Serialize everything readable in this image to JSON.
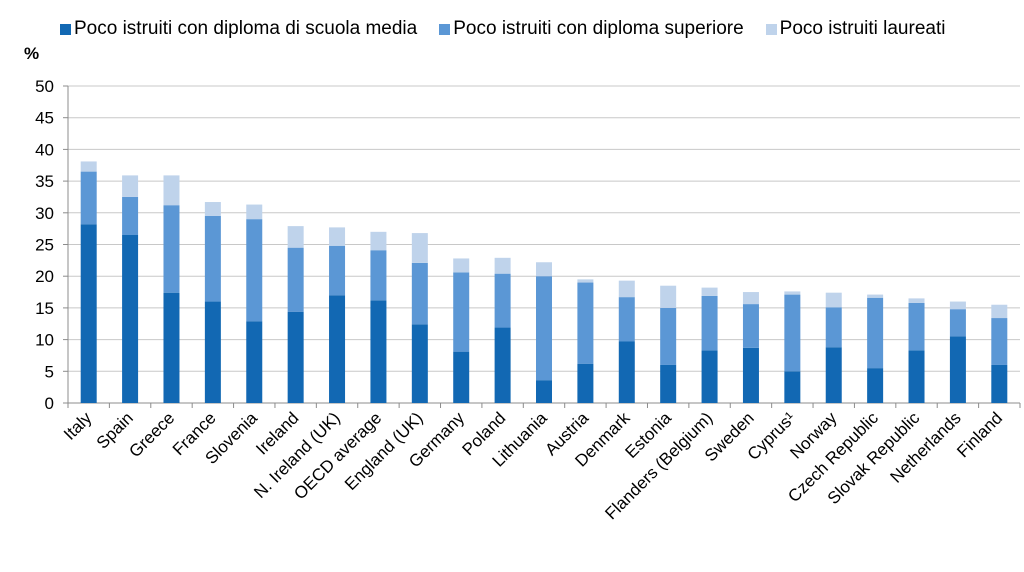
{
  "chart_data": {
    "type": "bar",
    "stacked": true,
    "unit_label": "%",
    "ylim": [
      0,
      50
    ],
    "yticks": [
      0,
      5,
      10,
      15,
      20,
      25,
      30,
      35,
      40,
      45,
      50
    ],
    "grid": true,
    "legend_position": "top",
    "categories": [
      "Italy",
      "Spain",
      "Greece",
      "France",
      "Slovenia",
      "Ireland",
      "N. Ireland (UK)",
      "OECD average",
      "England (UK)",
      "Germany",
      "Poland",
      "Lithuania",
      "Austria",
      "Denmark",
      "Estonia",
      "Flanders (Belgium)",
      "Sweden",
      "Cyprus¹",
      "Norway",
      "Czech Republic",
      "Slovak Republic",
      "Netherlands",
      "Finland"
    ],
    "series": [
      {
        "name": "Poco istruiti con diploma di scuola media",
        "color": "#1268b3",
        "values": [
          28.2,
          26.5,
          17.4,
          16.0,
          12.9,
          14.4,
          17.0,
          16.2,
          12.4,
          8.1,
          11.9,
          3.6,
          6.2,
          9.7,
          6.0,
          8.3,
          8.7,
          5.0,
          8.8,
          5.5,
          8.3,
          10.5,
          6.0
        ]
      },
      {
        "name": "Poco istruiti con diploma superiore",
        "color": "#5b97d5",
        "values": [
          8.3,
          6.0,
          13.8,
          13.5,
          16.1,
          10.1,
          7.8,
          7.9,
          9.7,
          12.5,
          8.5,
          16.4,
          12.8,
          7.0,
          9.0,
          8.6,
          6.9,
          12.1,
          6.3,
          11.1,
          7.5,
          4.3,
          7.4
        ]
      },
      {
        "name": "Poco istruiti laureati",
        "color": "#bfd3eb",
        "values": [
          1.6,
          3.4,
          4.7,
          2.2,
          2.3,
          3.4,
          2.9,
          2.9,
          4.7,
          2.2,
          2.5,
          2.2,
          0.5,
          2.6,
          3.5,
          1.3,
          1.9,
          0.5,
          2.3,
          0.5,
          0.7,
          1.2,
          2.1
        ]
      }
    ]
  }
}
